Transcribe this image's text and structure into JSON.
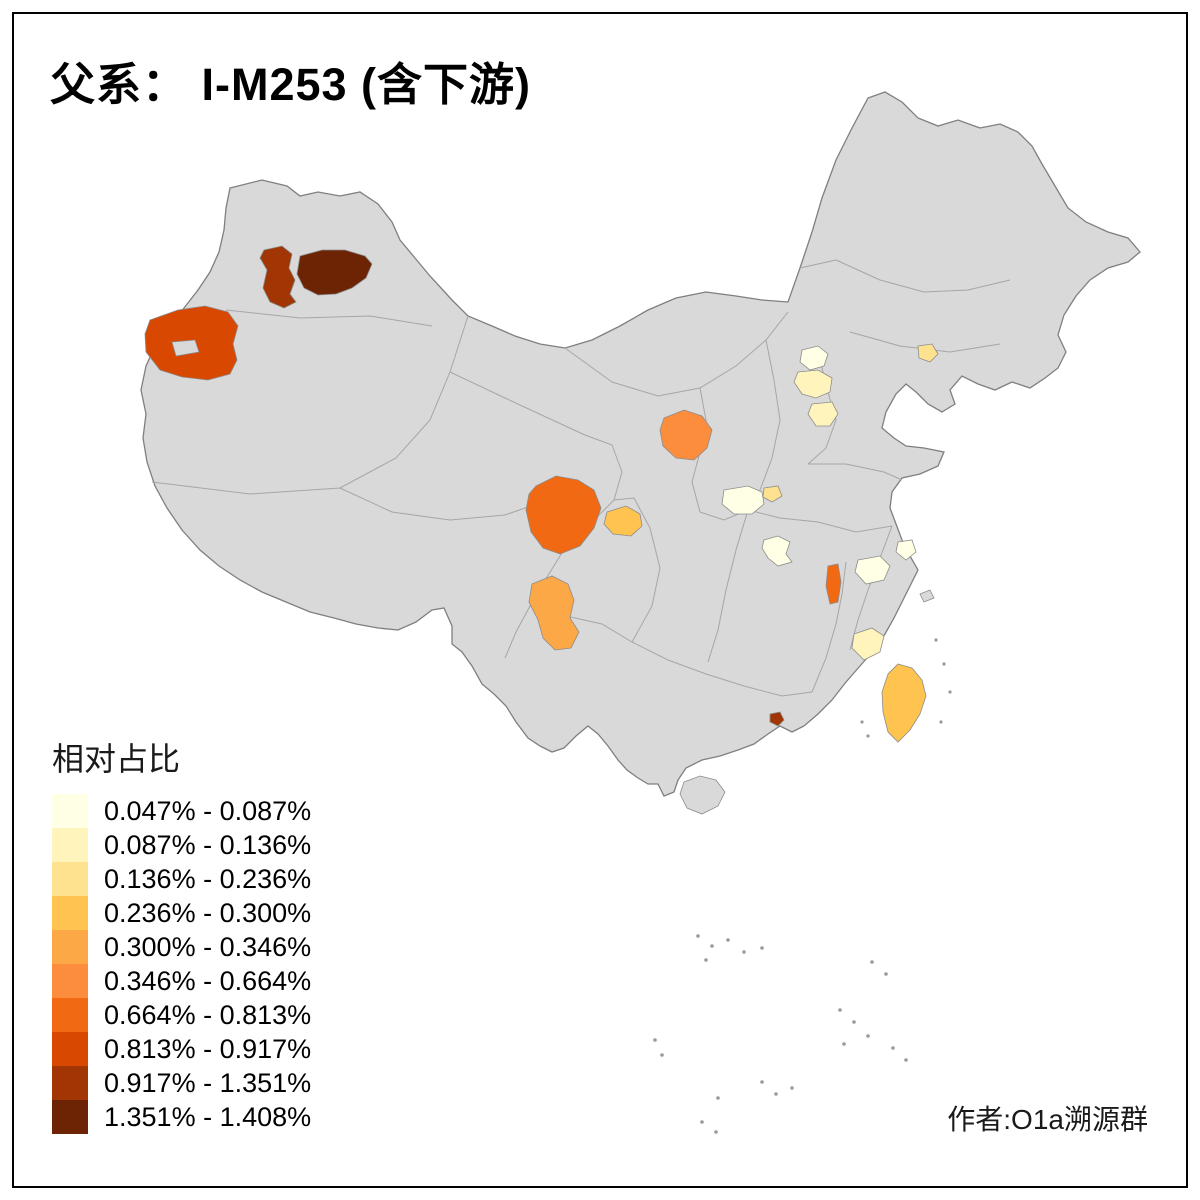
{
  "title": "父系： I-M253 (含下游)",
  "credit": "作者:O1a溯源群",
  "legend": {
    "title": "相对占比",
    "classes": [
      {
        "label": "0.047% - 0.087%",
        "color": "#FFFFE5"
      },
      {
        "label": "0.087% - 0.136%",
        "color": "#FFF5BC"
      },
      {
        "label": "0.136% - 0.236%",
        "color": "#FEE28F"
      },
      {
        "label": "0.236% - 0.300%",
        "color": "#FEC44F"
      },
      {
        "label": "0.300% - 0.346%",
        "color": "#FDA847"
      },
      {
        "label": "0.346% - 0.664%",
        "color": "#FB8D3C"
      },
      {
        "label": "0.664% - 0.813%",
        "color": "#F16913"
      },
      {
        "label": "0.813% - 0.917%",
        "color": "#D94801"
      },
      {
        "label": "0.917% - 1.351%",
        "color": "#A13503"
      },
      {
        "label": "1.351% - 1.408%",
        "color": "#6D2405"
      }
    ]
  },
  "map": {
    "base_fill": "#d9d9d9",
    "border_color": "#7f7f7f",
    "background": "#ffffff",
    "regions": [
      {
        "id": "r1",
        "name": "north-xinjiang-west",
        "class": 9
      },
      {
        "id": "r2",
        "name": "north-xinjiang-east",
        "class": 10
      },
      {
        "id": "r3",
        "name": "west-xinjiang",
        "class": 8
      },
      {
        "id": "r4",
        "name": "east-gansu",
        "class": 6
      },
      {
        "id": "r5",
        "name": "west-sichuan",
        "class": 7
      },
      {
        "id": "r6",
        "name": "central-sichuan",
        "class": 4
      },
      {
        "id": "r7",
        "name": "south-sichuan",
        "class": 5
      },
      {
        "id": "r8",
        "name": "beijing-area",
        "class": 1
      },
      {
        "id": "r9",
        "name": "central-hebei",
        "class": 2
      },
      {
        "id": "r10",
        "name": "south-hebei",
        "class": 2
      },
      {
        "id": "r11",
        "name": "liaoning-coast",
        "class": 3
      },
      {
        "id": "r12",
        "name": "central-henan",
        "class": 1
      },
      {
        "id": "r13",
        "name": "east-henan",
        "class": 3
      },
      {
        "id": "r14",
        "name": "central-hubei",
        "class": 1
      },
      {
        "id": "r15",
        "name": "north-jiangxi",
        "class": 7
      },
      {
        "id": "r16",
        "name": "south-anhui",
        "class": 1
      },
      {
        "id": "r17",
        "name": "shanghai-area",
        "class": 1
      },
      {
        "id": "r18",
        "name": "coastal-fujian",
        "class": 2
      },
      {
        "id": "r19",
        "name": "taiwan",
        "class": 4
      },
      {
        "id": "r20",
        "name": "pearl-river-delta",
        "class": 9
      }
    ]
  }
}
